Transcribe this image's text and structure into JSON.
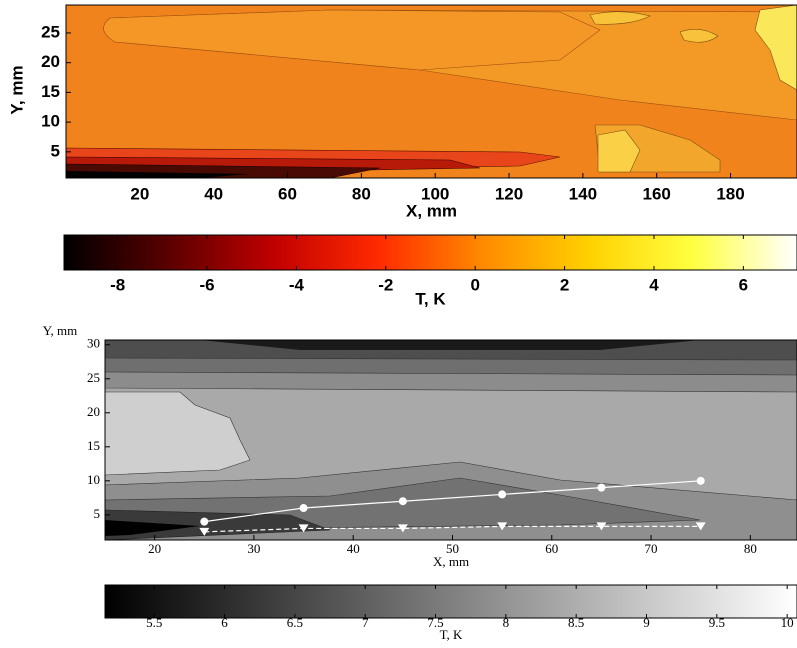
{
  "chart_data": [
    {
      "type": "contour",
      "x_label": "X, mm",
      "y_label": "Y, mm",
      "xlim": [
        0,
        198
      ],
      "xticks": [
        20,
        40,
        60,
        80,
        100,
        120,
        140,
        160,
        180
      ],
      "ylim": [
        0.6,
        29.7
      ],
      "yticks": [
        5,
        10,
        15,
        20,
        25
      ],
      "colorbar": {
        "label": "T, K",
        "lim": [
          -9.2,
          7.2
        ],
        "ticks": [
          -8,
          -6,
          -4,
          -2,
          0,
          2,
          4,
          6
        ],
        "colormap": [
          "#000000",
          "#5a0000",
          "#c00000",
          "#ff2a00",
          "#ff8a00",
          "#ffd000",
          "#ffff40",
          "#ffffff"
        ]
      },
      "series": []
    },
    {
      "type": "contour",
      "x_label": "X, mm",
      "y_label": "Y, mm",
      "xlim": [
        15,
        84.7
      ],
      "xticks": [
        20,
        30,
        40,
        50,
        60,
        70,
        80
      ],
      "ylim": [
        1.3,
        30.7
      ],
      "yticks": [
        5,
        10,
        15,
        20,
        25,
        30
      ],
      "colorbar": {
        "label": "T, K",
        "lim": [
          5.15,
          10.07
        ],
        "ticks": [
          5.5,
          6,
          6.5,
          7,
          7.5,
          8,
          8.5,
          9,
          9.5,
          10
        ],
        "colormap": [
          "#000000",
          "#ffffff"
        ]
      },
      "series": [
        {
          "marker": "circle",
          "color": "#ffffff",
          "dash": false,
          "x": [
            25,
            35,
            45,
            55,
            65,
            75
          ],
          "values": [
            4,
            6,
            7,
            8,
            9,
            10
          ]
        },
        {
          "marker": "triangle",
          "color": "#ffffff",
          "dash": true,
          "x": [
            25,
            35,
            45,
            55,
            65,
            75
          ],
          "values": [
            2.5,
            3,
            3,
            3.3,
            3.3,
            3.3
          ]
        }
      ]
    }
  ]
}
